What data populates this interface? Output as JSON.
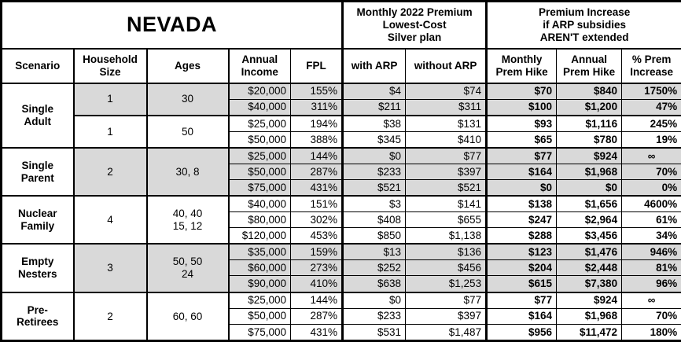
{
  "title": "NEVADA",
  "top_headers": {
    "premium_2022": "Monthly 2022 Premium\nLowest-Cost\nSilver plan",
    "premium_increase": "Premium Increase\nif ARP subsidies\nAREN'T extended"
  },
  "columns": {
    "scenario": "Scenario",
    "household_size": "Household\nSize",
    "ages": "Ages",
    "annual_income": "Annual\nIncome",
    "fpl": "FPL",
    "with_arp": "with ARP",
    "without_arp": "without ARP",
    "monthly_hike": "Monthly\nPrem Hike",
    "annual_hike": "Annual\nPrem Hike",
    "pct_increase": "% Prem\nIncrease"
  },
  "colors": {
    "shade": "#d9d9d9",
    "border": "#000000",
    "background": "#ffffff",
    "text": "#000000"
  },
  "chart_data": {
    "type": "table",
    "title": "NEVADA",
    "column_groups": [
      "Monthly 2022 Premium Lowest-Cost Silver plan",
      "Premium Increase if ARP subsidies AREN'T extended"
    ],
    "columns": [
      "Scenario",
      "Household Size",
      "Ages",
      "Annual Income",
      "FPL",
      "with ARP",
      "without ARP",
      "Monthly Prem Hike",
      "Annual Prem Hike",
      "% Prem Increase"
    ],
    "groups": [
      {
        "scenario": "Single\nAdult",
        "subgroups": [
          {
            "household_size": "1",
            "ages": "30",
            "shaded": true,
            "rows": [
              [
                "$20,000",
                "155%",
                "$4",
                "$74",
                "$70",
                "$840",
                "1750%"
              ],
              [
                "$40,000",
                "311%",
                "$211",
                "$311",
                "$100",
                "$1,200",
                "47%"
              ]
            ]
          },
          {
            "household_size": "1",
            "ages": "50",
            "shaded": false,
            "rows": [
              [
                "$25,000",
                "194%",
                "$38",
                "$131",
                "$93",
                "$1,116",
                "245%"
              ],
              [
                "$50,000",
                "388%",
                "$345",
                "$410",
                "$65",
                "$780",
                "19%"
              ]
            ]
          }
        ]
      },
      {
        "scenario": "Single\nParent",
        "subgroups": [
          {
            "household_size": "2",
            "ages": "30, 8",
            "shaded": true,
            "rows": [
              [
                "$25,000",
                "144%",
                "$0",
                "$77",
                "$77",
                "$924",
                "∞"
              ],
              [
                "$50,000",
                "287%",
                "$233",
                "$397",
                "$164",
                "$1,968",
                "70%"
              ],
              [
                "$75,000",
                "431%",
                "$521",
                "$521",
                "$0",
                "$0",
                "0%"
              ]
            ]
          }
        ]
      },
      {
        "scenario": "Nuclear\nFamily",
        "subgroups": [
          {
            "household_size": "4",
            "ages": "40, 40\n15, 12",
            "shaded": false,
            "rows": [
              [
                "$40,000",
                "151%",
                "$3",
                "$141",
                "$138",
                "$1,656",
                "4600%"
              ],
              [
                "$80,000",
                "302%",
                "$408",
                "$655",
                "$247",
                "$2,964",
                "61%"
              ],
              [
                "$120,000",
                "453%",
                "$850",
                "$1,138",
                "$288",
                "$3,456",
                "34%"
              ]
            ]
          }
        ]
      },
      {
        "scenario": "Empty\nNesters",
        "subgroups": [
          {
            "household_size": "3",
            "ages": "50, 50\n24",
            "shaded": true,
            "rows": [
              [
                "$35,000",
                "159%",
                "$13",
                "$136",
                "$123",
                "$1,476",
                "946%"
              ],
              [
                "$60,000",
                "273%",
                "$252",
                "$456",
                "$204",
                "$2,448",
                "81%"
              ],
              [
                "$90,000",
                "410%",
                "$638",
                "$1,253",
                "$615",
                "$7,380",
                "96%"
              ]
            ]
          }
        ]
      },
      {
        "scenario": "Pre-\nRetirees",
        "subgroups": [
          {
            "household_size": "2",
            "ages": "60, 60",
            "shaded": false,
            "rows": [
              [
                "$25,000",
                "144%",
                "$0",
                "$77",
                "$77",
                "$924",
                "∞"
              ],
              [
                "$50,000",
                "287%",
                "$233",
                "$397",
                "$164",
                "$1,968",
                "70%"
              ],
              [
                "$75,000",
                "431%",
                "$531",
                "$1,487",
                "$956",
                "$11,472",
                "180%"
              ]
            ]
          }
        ]
      }
    ]
  }
}
